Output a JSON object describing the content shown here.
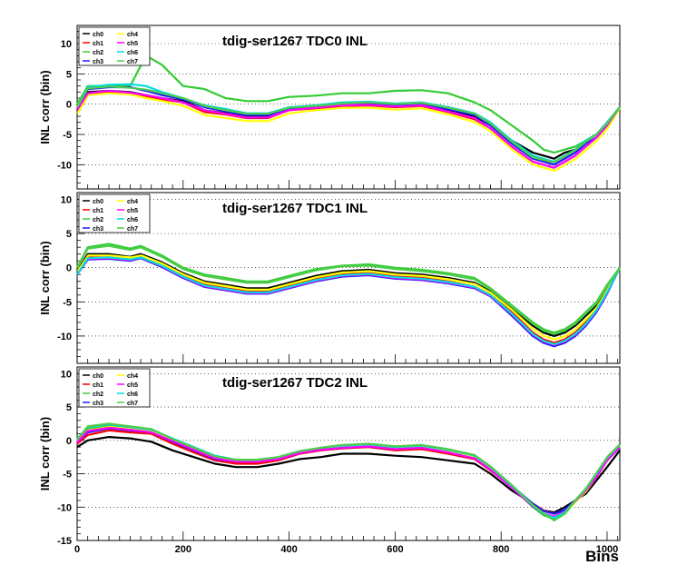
{
  "xlabel": "Bins",
  "ylabel": "INL corr (bin)",
  "legend_items": [
    "ch0",
    "ch1",
    "ch2",
    "ch3",
    "ch4",
    "ch5",
    "ch6",
    "ch7"
  ],
  "series_colors": [
    "#000000",
    "#ff0000",
    "#33cc33",
    "#1a1aff",
    "#ffff00",
    "#ff00ff",
    "#00dddd",
    "#4dcc4d"
  ],
  "chart_data": [
    {
      "type": "line",
      "title": "tdig-ser1267 TDC0 INL",
      "xlim": [
        0,
        1024
      ],
      "ylim": [
        -14,
        13
      ],
      "xticks": [
        0,
        200,
        400,
        600,
        800,
        1000
      ],
      "yticks": [
        10,
        5,
        0,
        -5,
        -10
      ],
      "x": [
        0,
        20,
        60,
        100,
        130,
        160,
        200,
        240,
        280,
        320,
        360,
        400,
        450,
        500,
        550,
        600,
        650,
        700,
        750,
        780,
        820,
        860,
        880,
        900,
        920,
        940,
        960,
        980,
        1000,
        1024
      ],
      "series": [
        {
          "name": "ch0",
          "values": [
            -1,
            2,
            2.2,
            2,
            1.5,
            1,
            0.5,
            -1,
            -1.5,
            -2,
            -2,
            -0.8,
            -0.4,
            -0.1,
            0,
            -0.3,
            -0.1,
            -1,
            -2,
            -3.5,
            -6,
            -8,
            -8.5,
            -9,
            -8,
            -7.5,
            -6,
            -5,
            -3,
            -0.5
          ]
        },
        {
          "name": "ch1",
          "values": [
            -1,
            1.8,
            2,
            1.8,
            1.3,
            0.8,
            0.3,
            -1.3,
            -1.7,
            -2.3,
            -2.3,
            -1,
            -0.7,
            -0.3,
            -0.2,
            -0.5,
            -0.3,
            -1.3,
            -2.5,
            -4,
            -7,
            -9.5,
            -10,
            -10.5,
            -9.5,
            -8.5,
            -7,
            -5.5,
            -3.5,
            -0.5
          ]
        },
        {
          "name": "ch2",
          "values": [
            0,
            3,
            3,
            3,
            8,
            6.5,
            3,
            2.5,
            1,
            0.5,
            0.5,
            1.2,
            1.4,
            1.8,
            1.8,
            2.2,
            2.3,
            1.8,
            0.3,
            -1,
            -3.5,
            -6,
            -7.5,
            -8,
            -7.5,
            -7,
            -6,
            -5,
            -3.5,
            -0.5
          ]
        },
        {
          "name": "ch3",
          "values": [
            -1,
            2.5,
            2.8,
            2.8,
            2.2,
            1.5,
            0.8,
            -0.5,
            -1.2,
            -1.8,
            -1.8,
            -0.8,
            -0.5,
            -0.1,
            0.1,
            -0.2,
            0,
            -0.8,
            -1.8,
            -3.5,
            -6.5,
            -9,
            -9.5,
            -10,
            -9,
            -8,
            -6.5,
            -5.5,
            -3.5,
            -0.5
          ]
        },
        {
          "name": "ch4",
          "values": [
            -1.5,
            1.5,
            1.8,
            1.6,
            1,
            0.5,
            -0.3,
            -1.8,
            -2.3,
            -2.8,
            -2.8,
            -1.5,
            -1,
            -0.6,
            -0.6,
            -0.9,
            -0.7,
            -1.7,
            -3,
            -4.5,
            -7.5,
            -10,
            -10.5,
            -11,
            -10,
            -9,
            -7.5,
            -6,
            -4,
            -0.5
          ]
        },
        {
          "name": "ch5",
          "values": [
            -1,
            1.8,
            2.2,
            1.9,
            1.5,
            1,
            0.3,
            -1,
            -1.6,
            -2.2,
            -2.2,
            -1,
            -0.6,
            -0.2,
            -0.1,
            -0.4,
            -0.2,
            -1.2,
            -2.3,
            -4,
            -7,
            -9.5,
            -10,
            -10.5,
            -9.5,
            -8.5,
            -7,
            -5.5,
            -3.5,
            -0.5
          ]
        },
        {
          "name": "ch6",
          "values": [
            -0.5,
            2.8,
            3.2,
            3.3,
            3,
            2,
            1,
            -0.2,
            -0.8,
            -1.5,
            -1.5,
            -0.5,
            -0.2,
            0.3,
            0.4,
            0.1,
            0.3,
            -0.5,
            -1.5,
            -3,
            -6,
            -8.5,
            -9,
            -9.5,
            -8.5,
            -7.5,
            -6,
            -5,
            -3,
            -0.5
          ]
        },
        {
          "name": "ch7",
          "values": [
            -0.5,
            2.6,
            2.9,
            2.7,
            2.4,
            1.8,
            1,
            -0.3,
            -1,
            -1.6,
            -1.6,
            -0.6,
            -0.3,
            0.1,
            0.3,
            0,
            0.2,
            -0.6,
            -1.6,
            -3.2,
            -6.2,
            -8.8,
            -9.2,
            -9.6,
            -8.6,
            -7.6,
            -6.2,
            -5,
            -3.2,
            -0.5
          ]
        }
      ]
    },
    {
      "type": "line",
      "title": "tdig-ser1267 TDC1 INL",
      "xlim": [
        0,
        1024
      ],
      "ylim": [
        -14,
        11
      ],
      "xticks": [
        0,
        200,
        400,
        600,
        800,
        1000
      ],
      "yticks": [
        10,
        5,
        0,
        -5,
        -10
      ],
      "x": [
        0,
        20,
        60,
        100,
        120,
        160,
        200,
        240,
        280,
        320,
        360,
        400,
        450,
        500,
        550,
        600,
        650,
        700,
        750,
        780,
        820,
        860,
        880,
        900,
        920,
        940,
        960,
        980,
        1000,
        1024
      ],
      "series": [
        {
          "name": "ch0",
          "values": [
            -0.5,
            2,
            2,
            1.6,
            2,
            0.8,
            -0.8,
            -2,
            -2.5,
            -3,
            -3,
            -2.2,
            -1.2,
            -0.5,
            -0.3,
            -0.8,
            -1,
            -1.5,
            -2.2,
            -3.5,
            -6,
            -8.5,
            -9.5,
            -10,
            -9.5,
            -8.5,
            -7,
            -5.5,
            -3,
            0
          ]
        },
        {
          "name": "ch1",
          "values": [
            -1,
            1.5,
            1.5,
            1.2,
            1.5,
            0.3,
            -1.2,
            -2.5,
            -3,
            -3.5,
            -3.5,
            -2.7,
            -1.7,
            -1,
            -0.8,
            -1.3,
            -1.5,
            -2,
            -2.8,
            -4,
            -6.5,
            -9.5,
            -10.5,
            -11,
            -10.5,
            -9.5,
            -8,
            -6,
            -3.5,
            0
          ]
        },
        {
          "name": "ch2",
          "values": [
            0,
            3,
            3.5,
            2.8,
            3.2,
            1.8,
            0,
            -1,
            -1.5,
            -2,
            -2,
            -1.2,
            -0.2,
            0.3,
            0.5,
            0,
            -0.3,
            -0.8,
            -1.5,
            -3,
            -5.5,
            -8,
            -9,
            -9.5,
            -9,
            -8,
            -6.5,
            -5,
            -2.5,
            0
          ]
        },
        {
          "name": "ch3",
          "values": [
            -1,
            1.2,
            1.3,
            1,
            1.4,
            0.1,
            -1.5,
            -2.8,
            -3.3,
            -3.8,
            -3.8,
            -3,
            -2,
            -1.3,
            -1.1,
            -1.6,
            -1.8,
            -2.3,
            -3,
            -4.2,
            -7,
            -10,
            -11,
            -11.5,
            -11,
            -10,
            -8.5,
            -6.5,
            -3.8,
            0
          ]
        },
        {
          "name": "ch4",
          "values": [
            -0.5,
            1.8,
            1.8,
            1.5,
            1.8,
            0.6,
            -1,
            -2.2,
            -2.7,
            -3.2,
            -3.2,
            -2.4,
            -1.4,
            -0.7,
            -0.5,
            -1,
            -1.2,
            -1.7,
            -2.4,
            -3.7,
            -6.2,
            -9,
            -10,
            -10.5,
            -10,
            -9,
            -7.5,
            -5.8,
            -3.2,
            0
          ]
        },
        {
          "name": "ch5",
          "values": [
            -1,
            1.3,
            1.4,
            1.1,
            1.5,
            0.2,
            -1.4,
            -2.7,
            -3.2,
            -3.7,
            -3.7,
            -2.9,
            -1.9,
            -1.2,
            -1,
            -1.5,
            -1.7,
            -2.2,
            -2.9,
            -4.1,
            -6.8,
            -9.8,
            -10.8,
            -11.3,
            -10.8,
            -9.8,
            -8.3,
            -6.3,
            -3.7,
            0
          ]
        },
        {
          "name": "ch6",
          "values": [
            -1,
            1.4,
            1.5,
            1.2,
            1.5,
            0.3,
            -1.3,
            -2.6,
            -3.1,
            -3.6,
            -3.6,
            -2.8,
            -1.8,
            -1.1,
            -0.9,
            -1.4,
            -1.6,
            -2.1,
            -2.8,
            -4,
            -6.7,
            -9.7,
            -10.7,
            -11.2,
            -10.7,
            -9.7,
            -8.2,
            -6.2,
            -3.6,
            0
          ]
        },
        {
          "name": "ch7",
          "values": [
            0,
            2.8,
            3.2,
            2.6,
            3,
            1.6,
            -0.2,
            -1.2,
            -1.7,
            -2.2,
            -2.2,
            -1.4,
            -0.4,
            0.2,
            0.3,
            -0.2,
            -0.5,
            -1,
            -1.7,
            -3.2,
            -5.7,
            -8.2,
            -9.2,
            -9.7,
            -9.2,
            -8.2,
            -6.7,
            -5.2,
            -2.7,
            0
          ]
        }
      ]
    },
    {
      "type": "line",
      "title": "tdig-ser1267 TDC2 INL",
      "xlim": [
        0,
        1024
      ],
      "ylim": [
        -15,
        11
      ],
      "xticks": [
        0,
        200,
        400,
        600,
        800,
        1000
      ],
      "yticks": [
        10,
        5,
        0,
        -5,
        -10,
        -15
      ],
      "x": [
        0,
        20,
        60,
        100,
        140,
        180,
        220,
        260,
        300,
        340,
        380,
        420,
        460,
        500,
        550,
        600,
        650,
        700,
        750,
        780,
        820,
        860,
        880,
        900,
        920,
        940,
        960,
        980,
        1000,
        1024
      ],
      "series": [
        {
          "name": "ch0",
          "values": [
            -1,
            0,
            0.5,
            0.3,
            -0.2,
            -1.5,
            -2.5,
            -3.5,
            -4,
            -4,
            -3.5,
            -2.8,
            -2.5,
            -2,
            -2,
            -2.3,
            -2.5,
            -3,
            -3.5,
            -5,
            -7.5,
            -9.5,
            -10.5,
            -10.8,
            -10,
            -9,
            -8,
            -6,
            -4,
            -1.5
          ]
        },
        {
          "name": "ch1",
          "values": [
            -0.5,
            0.8,
            1.5,
            1.2,
            1,
            -0.5,
            -1.8,
            -3,
            -3.5,
            -3.5,
            -3,
            -2,
            -1.5,
            -1.2,
            -1,
            -1.5,
            -1.3,
            -2,
            -2.8,
            -4.5,
            -7,
            -9.5,
            -10.5,
            -11,
            -10.5,
            -9,
            -7.5,
            -5.5,
            -3,
            -1
          ]
        },
        {
          "name": "ch2",
          "values": [
            0,
            1.8,
            2.2,
            1.8,
            1.5,
            0,
            -1.2,
            -2.5,
            -3,
            -3,
            -2.6,
            -1.8,
            -1.3,
            -1,
            -0.8,
            -1.2,
            -1,
            -1.6,
            -2.5,
            -4.2,
            -7,
            -10,
            -11.2,
            -11.8,
            -11,
            -9.2,
            -7.5,
            -5.2,
            -2.8,
            -0.8
          ]
        },
        {
          "name": "ch3",
          "values": [
            -0.3,
            1.2,
            1.8,
            1.5,
            1.2,
            -0.2,
            -1.5,
            -2.8,
            -3.2,
            -3.2,
            -2.8,
            -1.9,
            -1.4,
            -1.1,
            -0.9,
            -1.3,
            -1.1,
            -1.8,
            -2.7,
            -4.3,
            -6.8,
            -9.5,
            -10.6,
            -11,
            -10.4,
            -9,
            -7.4,
            -5.4,
            -3,
            -1
          ]
        },
        {
          "name": "ch4",
          "values": [
            -0.2,
            1.5,
            2,
            1.7,
            1.3,
            0,
            -1.3,
            -2.6,
            -3.1,
            -3.1,
            -2.7,
            -1.8,
            -1.3,
            -1,
            -0.8,
            -1.2,
            -1,
            -1.7,
            -2.6,
            -4.3,
            -7,
            -9.8,
            -11,
            -11.5,
            -10.8,
            -9.2,
            -7.6,
            -5.4,
            -2.9,
            -0.9
          ]
        },
        {
          "name": "ch5",
          "values": [
            -0.3,
            1.4,
            1.9,
            1.6,
            1.2,
            -0.1,
            -1.4,
            -2.7,
            -3.2,
            -3.2,
            -2.8,
            -1.9,
            -1.4,
            -1.1,
            -0.9,
            -1.3,
            -1.1,
            -1.8,
            -2.7,
            -4.4,
            -7.1,
            -9.9,
            -11,
            -11.4,
            -10.7,
            -9.1,
            -7.5,
            -5.5,
            -3,
            -1
          ]
        },
        {
          "name": "ch6",
          "values": [
            0.2,
            2,
            2.4,
            2,
            1.6,
            0.3,
            -1,
            -2.3,
            -2.9,
            -2.9,
            -2.5,
            -1.6,
            -1.1,
            -0.8,
            -0.6,
            -1,
            -0.8,
            -1.4,
            -2.3,
            -4,
            -6.8,
            -9.8,
            -11,
            -11.6,
            -10.8,
            -9,
            -7.3,
            -5,
            -2.6,
            -0.7
          ]
        },
        {
          "name": "ch7",
          "values": [
            0.1,
            2.1,
            2.5,
            2.1,
            1.7,
            0.2,
            -1.1,
            -2.4,
            -2.9,
            -2.9,
            -2.5,
            -1.6,
            -1.1,
            -0.7,
            -0.5,
            -0.9,
            -0.7,
            -1.3,
            -2.2,
            -3.9,
            -6.7,
            -9.7,
            -10.9,
            -12,
            -11,
            -9,
            -7.2,
            -4.9,
            -2.5,
            -0.6
          ]
        }
      ]
    }
  ]
}
